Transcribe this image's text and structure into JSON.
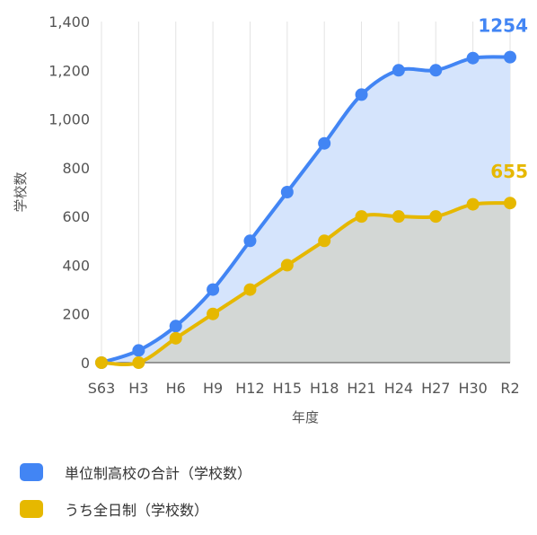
{
  "chart_data": {
    "type": "area",
    "title": "",
    "xlabel": "年度",
    "ylabel": "学校数",
    "categories": [
      "S63",
      "H3",
      "H6",
      "H9",
      "H12",
      "H15",
      "H18",
      "H21",
      "H24",
      "H27",
      "H30",
      "R2"
    ],
    "ylim": [
      0,
      1400
    ],
    "yticks": [
      0,
      200,
      400,
      600,
      800,
      1000,
      1200,
      1400
    ],
    "ytick_labels": [
      "0",
      "200",
      "400",
      "600",
      "800",
      "1,000",
      "1,200",
      "1,400"
    ],
    "grid": "vertical",
    "legend_position": "bottom",
    "series": [
      {
        "name": "単位制高校の合計（学校数）",
        "color": "#4285f4",
        "fill": "#d5e4fc",
        "values": [
          0,
          50,
          150,
          300,
          500,
          700,
          900,
          1100,
          1200,
          1200,
          1250,
          1254
        ],
        "end_label": "1254"
      },
      {
        "name": "うち全日制（学校数）",
        "color": "#e6b800",
        "fill": "#d3d7d5",
        "values": [
          0,
          0,
          100,
          200,
          300,
          400,
          500,
          600,
          600,
          600,
          650,
          655
        ],
        "end_label": "655"
      }
    ]
  }
}
